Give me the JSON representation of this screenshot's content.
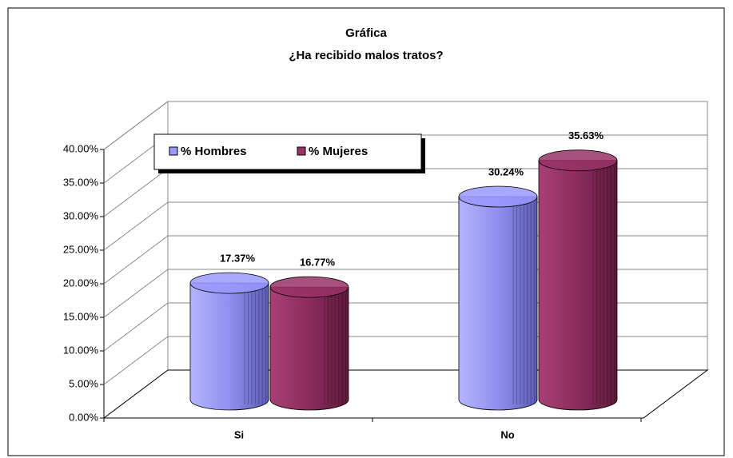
{
  "chart_data": {
    "type": "bar3d",
    "title": "Gráfica",
    "subtitle": "¿Ha recibido malos tratos?",
    "categories": [
      "Si",
      "No"
    ],
    "series": [
      {
        "name": "% Hombres",
        "color": "#9999ff",
        "values": [
          17.37,
          30.24
        ],
        "value_labels": [
          "17.37%",
          "30.24%"
        ]
      },
      {
        "name": "% Mujeres",
        "color": "#993366",
        "values": [
          16.77,
          35.63
        ],
        "value_labels": [
          "16.77%",
          "35.63%"
        ]
      }
    ],
    "ylim": [
      0,
      40
    ],
    "yticks": [
      {
        "value": 0,
        "label": "0.00%"
      },
      {
        "value": 5,
        "label": "5.00%"
      },
      {
        "value": 10,
        "label": "10.00%"
      },
      {
        "value": 15,
        "label": "15.00%"
      },
      {
        "value": 20,
        "label": "20.00%"
      },
      {
        "value": 25,
        "label": "25.00%"
      },
      {
        "value": 30,
        "label": "30.00%"
      },
      {
        "value": 35,
        "label": "35.00%"
      },
      {
        "value": 40,
        "label": "40.00%"
      }
    ],
    "grid": true,
    "legend": "top-left"
  }
}
